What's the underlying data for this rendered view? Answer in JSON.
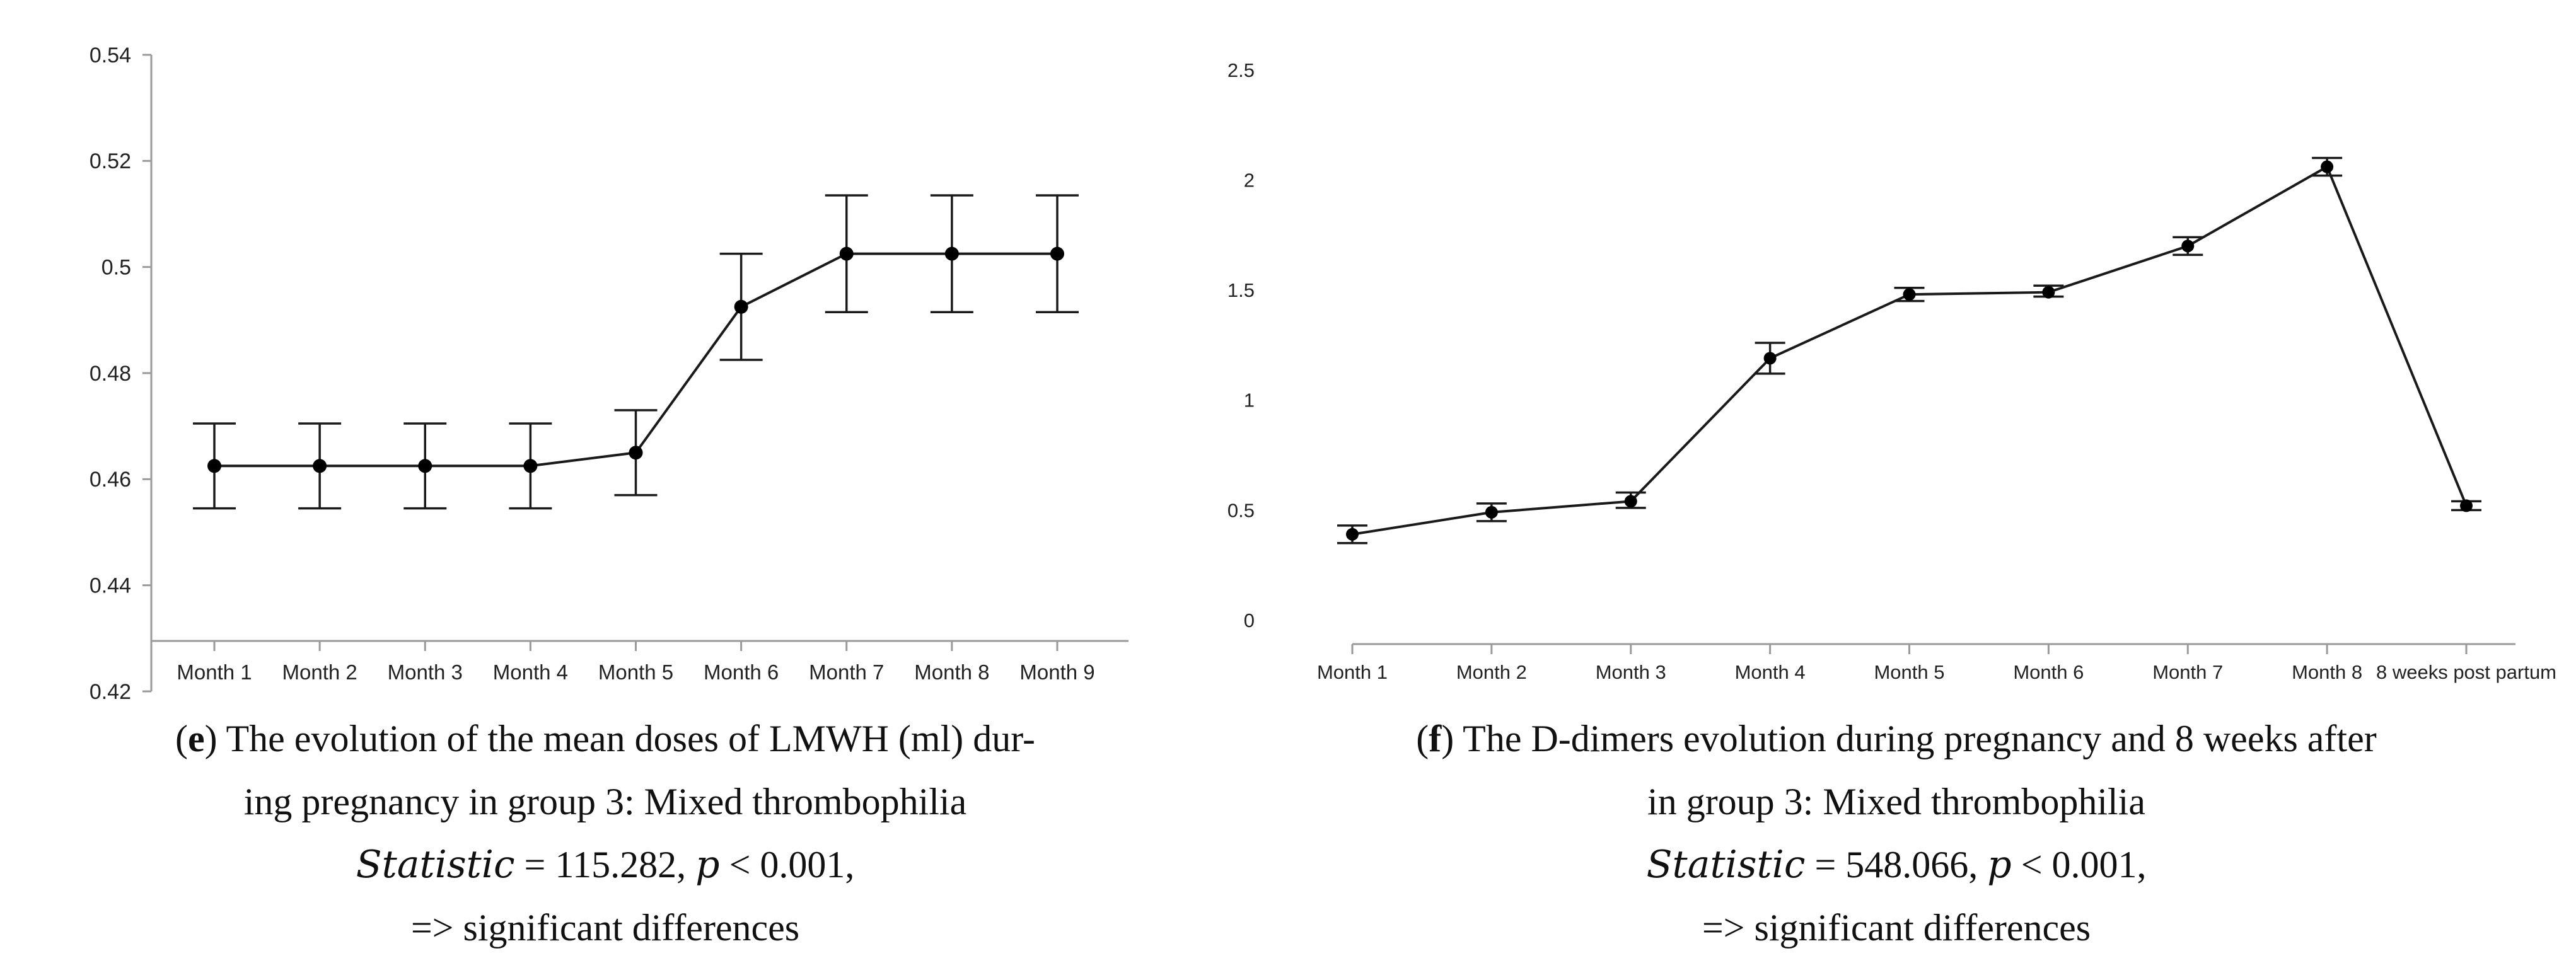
{
  "panels": [
    {
      "caption": {
        "label_open": "(",
        "label": "e",
        "label_close": ")",
        "line1_rest": " The evolution of the mean doses of LMWH (ml) dur-",
        "line2": "ing pregnancy in group 3: Mixed thrombophilia",
        "stat_name": "Statistic",
        "stat_eq": " = 115.282, ",
        "p_name": "p",
        "p_cond": " < 0.001,",
        "conclusion": "=> significant differences"
      }
    },
    {
      "caption": {
        "label_open": "(",
        "label": "f",
        "label_close": ")",
        "line1_rest": " The D-dimers evolution during pregnancy and 8 weeks after",
        "line2": "in group 3: Mixed thrombophilia",
        "stat_name": "Statistic",
        "stat_eq": " = 548.066, ",
        "p_name": "p",
        "p_cond": " < 0.001,",
        "conclusion": "=> significant differences"
      }
    }
  ],
  "chart_data": [
    {
      "type": "line",
      "title": "",
      "xlabel": "",
      "ylabel": "",
      "categories": [
        "Month 1",
        "Month 2",
        "Month 3",
        "Month 4",
        "Month 5",
        "Month 6",
        "Month 7",
        "Month 8",
        "Month 9"
      ],
      "values": [
        0.4625,
        0.4625,
        0.4625,
        0.4625,
        0.465,
        0.4925,
        0.5025,
        0.5025,
        0.5025
      ],
      "error_low": [
        0.4545,
        0.4545,
        0.4545,
        0.4545,
        0.457,
        0.4825,
        0.4915,
        0.4915,
        0.4915
      ],
      "error_high": [
        0.4705,
        0.4705,
        0.4705,
        0.4705,
        0.473,
        0.5025,
        0.5135,
        0.5135,
        0.5135
      ],
      "ylim": [
        0.42,
        0.54
      ],
      "yticks": [
        "0.42",
        "0.44",
        "0.46",
        "0.48",
        "0.5",
        "0.52",
        "0.54"
      ],
      "grid": false,
      "color": "#1a1a1a"
    },
    {
      "type": "line",
      "title": "",
      "xlabel": "",
      "ylabel": "",
      "categories": [
        "Month 1",
        "Month 2",
        "Month 3",
        "Month 4",
        "Month 5",
        "Month 6",
        "Month 7",
        "Month 8",
        "8 weeks post partum"
      ],
      "values": [
        0.39,
        0.49,
        0.54,
        1.19,
        1.48,
        1.49,
        1.7,
        2.06,
        0.52
      ],
      "error_low": [
        0.35,
        0.45,
        0.51,
        1.12,
        1.45,
        1.47,
        1.66,
        2.02,
        0.5
      ],
      "error_high": [
        0.43,
        0.53,
        0.58,
        1.26,
        1.51,
        1.52,
        1.74,
        2.1,
        0.54
      ],
      "ylim": [
        0,
        2.5
      ],
      "yticks": [
        "0",
        "0.5",
        "1",
        "1.5",
        "2",
        "2.5"
      ],
      "grid": false,
      "color": "#1a1a1a"
    }
  ]
}
